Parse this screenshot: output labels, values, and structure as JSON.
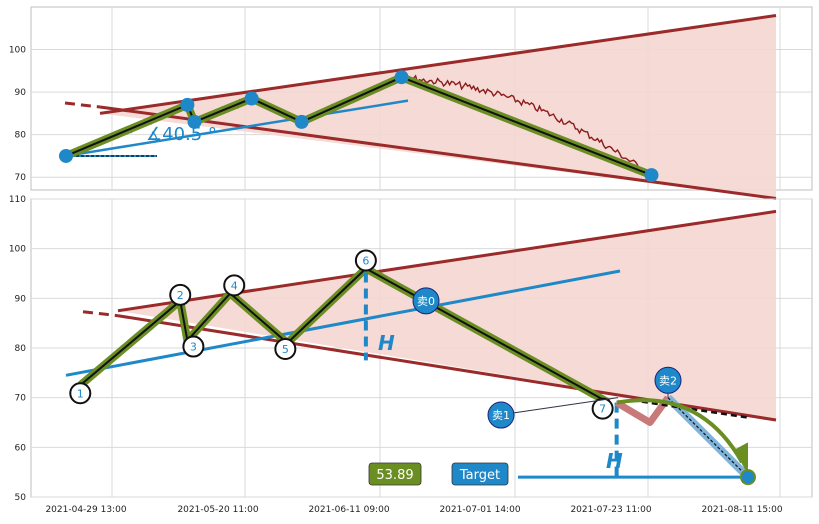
{
  "chart_data": [
    {
      "type": "line",
      "panel": "overview",
      "ylim": [
        67,
        110
      ],
      "yticks": [
        70,
        80,
        90,
        100
      ],
      "grid": true,
      "angle_label": "∡40.5 °",
      "pattern_points": [
        {
          "t": 0.0,
          "y": 75.0
        },
        {
          "t": 0.17,
          "y": 87.0
        },
        {
          "t": 0.18,
          "y": 83.0
        },
        {
          "t": 0.26,
          "y": 88.5
        },
        {
          "t": 0.33,
          "y": 83.0
        },
        {
          "t": 0.47,
          "y": 93.5
        },
        {
          "t": 0.82,
          "y": 70.5
        }
      ],
      "upper_trendline": {
        "from": {
          "t": 0.05,
          "y": 85
        },
        "to": {
          "t": 1.05,
          "y": 108
        }
      },
      "lower_trendline": {
        "from": {
          "t": 0.0,
          "y": 86.5
        },
        "to": {
          "t": 1.05,
          "y": 65
        }
      },
      "inner_line": {
        "from": {
          "t": 0.0,
          "y": 75
        },
        "to": {
          "t": 0.5,
          "y": 88
        }
      },
      "baseline_y": 75
    },
    {
      "type": "line",
      "panel": "detail",
      "ylim": [
        50,
        110
      ],
      "yticks": [
        50,
        60,
        70,
        80,
        90,
        100,
        110
      ],
      "grid": true,
      "xticks": [
        "2021-04-29 13:00",
        "2021-05-20 11:00",
        "2021-06-11 09:00",
        "2021-07-01 14:00",
        "2021-07-23 11:00",
        "2021-08-11 15:00"
      ],
      "pattern_points": [
        {
          "label": "1",
          "t": 0.02,
          "y": 72.5
        },
        {
          "label": "2",
          "t": 0.16,
          "y": 89.5
        },
        {
          "label": "3",
          "t": 0.17,
          "y": 81.5
        },
        {
          "label": "4",
          "t": 0.23,
          "y": 91.0
        },
        {
          "label": "5",
          "t": 0.31,
          "y": 81.0
        },
        {
          "label": "6",
          "t": 0.42,
          "y": 96.0
        },
        {
          "label": "7",
          "t": 0.76,
          "y": 69.0
        }
      ],
      "sell_markers": [
        {
          "label": "卖0",
          "t": 0.49,
          "y": 89.5
        },
        {
          "label": "卖1",
          "t": 0.62,
          "y": 66.5
        },
        {
          "label": "卖2",
          "t": 0.83,
          "y": 73.5
        }
      ],
      "height_label": "H",
      "price_box": "53.89",
      "target_label": "Target",
      "target_value": 54.0
    }
  ],
  "colors": {
    "trendline": "#9b2a2a",
    "fill": "#f5d6d0",
    "pattern": "#6b8e23",
    "blue": "#1e88c8",
    "price": "#8b1a1a"
  }
}
